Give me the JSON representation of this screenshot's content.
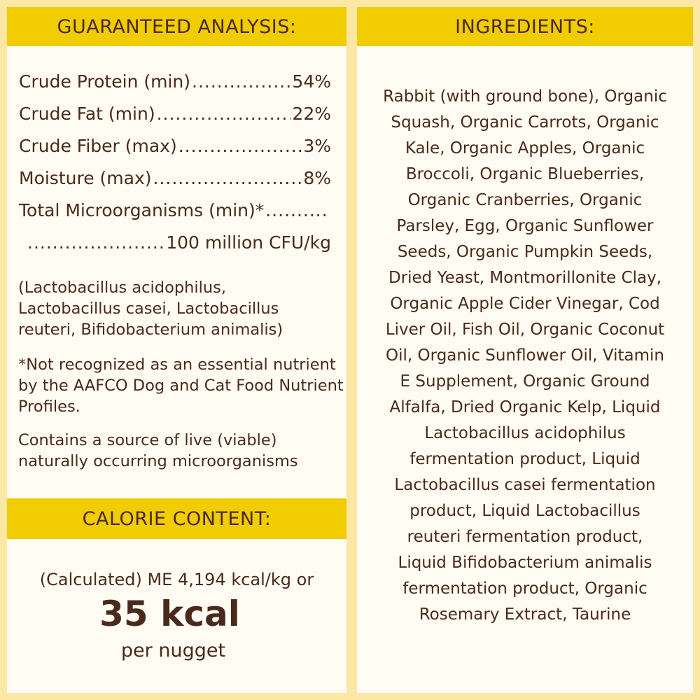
{
  "analysis": {
    "title": "GUARANTEED ANALYSIS:",
    "items": [
      {
        "label": "Crude Protein (min)",
        "value": "54%"
      },
      {
        "label": "Crude Fat (min)",
        "value": "22%"
      },
      {
        "label": "Crude Fiber (max)",
        "value": "3%"
      },
      {
        "label": "Moisture (max)",
        "value": "8%"
      },
      {
        "label": "Total Microorganisms (min)*",
        "value": "100 million CFU/kg"
      }
    ],
    "strains": "(Lactobacillus acidophilus, Lactobacillus casei, Lactobacillus reuteri, Bifidobacterium animalis)",
    "footnote": "*Not recognized as an essential nutrient by the AAFCO Dog and Cat Food Nutrient Profiles.",
    "live_note": "Contains a source of live (viable) naturally occurring microorganisms"
  },
  "calorie": {
    "title": "CALORIE CONTENT:",
    "calculated": "(Calculated) ME 4,194 kcal/kg or",
    "big": "35 kcal",
    "unit": "per nugget"
  },
  "ingredients": {
    "title": "INGREDIENTS:",
    "lines": [
      "Rabbit (with ground bone), Organic",
      "Squash, Organic Carrots, Organic",
      "Kale, Organic Apples, Organic",
      "Broccoli, Organic Blueberries,",
      "Organic Cranberries, Organic",
      "Parsley, Egg, Organic Sunflower",
      "Seeds, Organic Pumpkin Seeds,",
      "Dried Yeast, Montmorillonite Clay,",
      "Organic Apple Cider Vinegar, Cod",
      "Liver Oil, Fish Oil, Organic Coconut",
      "Oil, Organic Sunflower Oil, Vitamin",
      "E Supplement, Organic Ground",
      "Alfalfa, Dried Organic Kelp, Liquid",
      "Lactobacillus acidophilus",
      "fermentation product, Liquid",
      "Lactobacillus casei fermentation",
      "product, Liquid Lactobacillus",
      "reuteri fermentation product,",
      "Liquid Bifidobacterium animalis",
      "fermentation product, Organic",
      "Rosemary Extract, Taurine"
    ]
  },
  "colors": {
    "background": "#fde7a5",
    "header": "#f0cc00",
    "panel": "#fffcf3",
    "text": "#4a2a1c"
  }
}
